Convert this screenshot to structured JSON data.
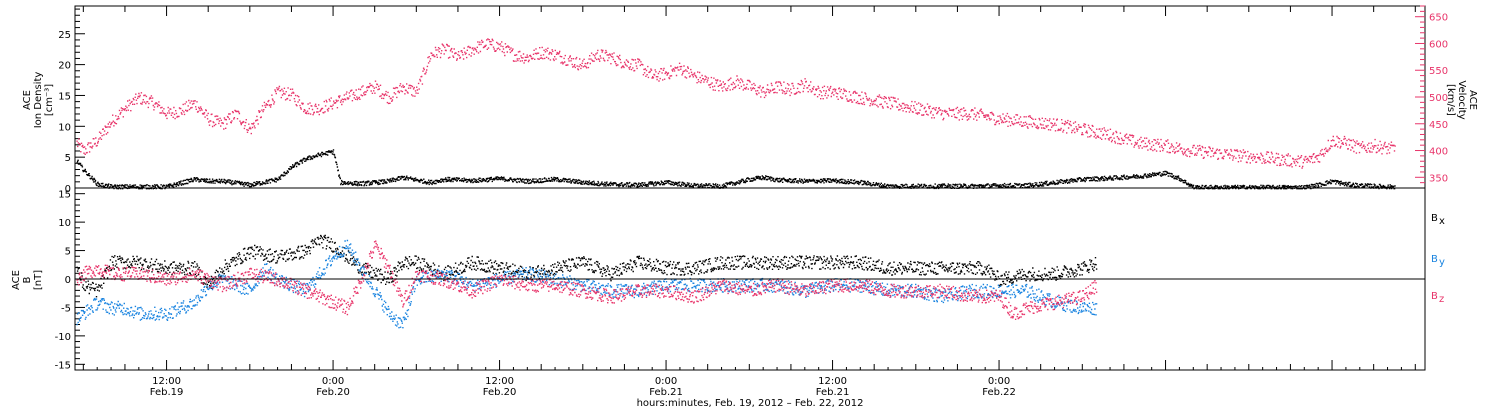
{
  "colors": {
    "axis": "#000000",
    "density": "#000000",
    "velocity": "#e8346a",
    "bx": "#000000",
    "by": "#1a84e0",
    "bz": "#e8346a"
  },
  "chart_data": [
    {
      "panel": "top",
      "type": "scatter",
      "ylabel": [
        "ACE",
        "Ion Density",
        "[cm⁻³]"
      ],
      "ylim": [
        0,
        29.5
      ],
      "yticks": [
        0,
        5,
        10,
        15,
        20,
        25
      ],
      "y2label": [
        "ACE",
        "Velocity",
        "[km/s]"
      ],
      "y2lim": [
        330,
        670
      ],
      "y2ticks": [
        350,
        400,
        450,
        500,
        550,
        600,
        650
      ],
      "x_units": "hours since 2012-02-19 00:00",
      "xlim": [
        5.4,
        102.7
      ],
      "series": [
        {
          "key": "density",
          "axis": "left",
          "x": [
            5.5,
            6,
            7,
            8,
            10,
            12,
            14,
            15,
            16,
            18,
            20,
            21,
            22,
            23,
            24,
            24.5,
            26,
            28,
            29,
            30,
            31,
            32,
            34,
            36,
            38,
            40,
            42,
            44,
            46,
            48,
            50,
            52,
            54,
            55,
            56,
            58,
            60,
            62,
            64,
            66,
            68,
            70,
            72,
            74,
            76,
            78,
            80,
            82,
            84,
            85,
            86,
            88,
            90,
            92,
            94,
            95,
            96,
            97,
            98,
            99,
            100,
            100.5
          ],
          "y": [
            4.5,
            3.0,
            0.7,
            0.3,
            0.3,
            0.3,
            1.5,
            1.2,
            1.2,
            0.6,
            1.5,
            3.5,
            4.8,
            5.5,
            6.0,
            1.0,
            0.8,
            1.2,
            1.8,
            1.4,
            1.0,
            1.5,
            1.3,
            1.6,
            1.2,
            1.5,
            1.0,
            0.7,
            0.6,
            1.0,
            0.5,
            0.4,
            1.5,
            1.8,
            1.4,
            1.2,
            1.3,
            1.0,
            0.4,
            0.4,
            0.4,
            0.4,
            0.5,
            0.5,
            1.0,
            1.5,
            1.7,
            2.0,
            2.5,
            1.6,
            0.2,
            0.2,
            0.2,
            0.2,
            0.2,
            0.6,
            1.2,
            0.7,
            0.5,
            0.4,
            0.3,
            0.3
          ]
        },
        {
          "key": "velocity",
          "axis": "right",
          "x": [
            5.5,
            6,
            7,
            8,
            9,
            10,
            11,
            12,
            13,
            14,
            15,
            16,
            17,
            18,
            19,
            20,
            21,
            22,
            23,
            24,
            25,
            26,
            27,
            28,
            29,
            30,
            31,
            32,
            33,
            34,
            35,
            36,
            37,
            38,
            39,
            40,
            41,
            42,
            43,
            44,
            45,
            46,
            47,
            48,
            49,
            50,
            51,
            52,
            53,
            54,
            55,
            56,
            57,
            58,
            59,
            60,
            62,
            64,
            66,
            68,
            70,
            72,
            74,
            76,
            78,
            80,
            82,
            84,
            86,
            88,
            90,
            92,
            94,
            95,
            96,
            97,
            98,
            99,
            100,
            100.5
          ],
          "y": [
            415,
            400,
            420,
            455,
            480,
            500,
            490,
            470,
            475,
            490,
            460,
            450,
            470,
            440,
            480,
            510,
            505,
            480,
            480,
            490,
            500,
            510,
            520,
            500,
            520,
            510,
            580,
            590,
            575,
            590,
            600,
            595,
            580,
            575,
            585,
            580,
            570,
            560,
            580,
            575,
            565,
            560,
            540,
            545,
            555,
            540,
            530,
            520,
            530,
            520,
            510,
            520,
            515,
            525,
            510,
            510,
            500,
            490,
            480,
            470,
            470,
            460,
            455,
            450,
            440,
            430,
            415,
            410,
            400,
            395,
            390,
            385,
            380,
            390,
            420,
            415,
            405,
            410,
            405,
            405
          ]
        }
      ]
    },
    {
      "panel": "bottom",
      "type": "scatter",
      "ylabel": [
        "ACE",
        "B",
        "[nT]"
      ],
      "ylim": [
        -16,
        16
      ],
      "yticks": [
        -15,
        -10,
        -5,
        0,
        5,
        10,
        15
      ],
      "zero_line": true,
      "x_units": "hours since 2012-02-19 00:00",
      "xlim": [
        5.4,
        102.7
      ],
      "xticks": [
        {
          "x": 12,
          "label": "12:00",
          "day": "Feb.19"
        },
        {
          "x": 24,
          "label": "0:00",
          "day": "Feb.20"
        },
        {
          "x": 36,
          "label": "12:00",
          "day": "Feb.20"
        },
        {
          "x": 48,
          "label": "0:00",
          "day": "Feb.21"
        },
        {
          "x": 60,
          "label": "12:00",
          "day": "Feb.21"
        },
        {
          "x": 72,
          "label": "0:00",
          "day": "Feb.22"
        }
      ],
      "xlabel": "hours:minutes, Feb. 19, 2012 – Feb. 22, 2012",
      "series": [
        {
          "key": "bx",
          "name": "B",
          "subscript": "x",
          "x": [
            5.5,
            6,
            7,
            8,
            10,
            12,
            14,
            15,
            16,
            18,
            20,
            22,
            23,
            24,
            25,
            26,
            28,
            29,
            30,
            32,
            34,
            36,
            38,
            40,
            42,
            44,
            46,
            48,
            50,
            52,
            54,
            56,
            58,
            60,
            62,
            64,
            66,
            68,
            70,
            71,
            72,
            74,
            76,
            78,
            79
          ],
          "y": [
            2,
            -1,
            -2,
            3,
            3,
            2,
            2,
            -1,
            2,
            5,
            4,
            5,
            7,
            6,
            4,
            2,
            0,
            3,
            3,
            1,
            3,
            2,
            1,
            2,
            3,
            1,
            3,
            2,
            2,
            3,
            3,
            3,
            3,
            3,
            3,
            2,
            2,
            2,
            2,
            2,
            0,
            1,
            1,
            2,
            3
          ]
        },
        {
          "key": "by",
          "name": "B",
          "subscript": "y",
          "x": [
            5.5,
            6,
            7,
            8,
            9,
            10,
            12,
            14,
            15,
            16,
            18,
            19,
            20,
            22,
            24,
            25,
            26,
            27,
            28,
            29,
            30,
            32,
            34,
            36,
            38,
            40,
            42,
            44,
            46,
            48,
            50,
            52,
            54,
            56,
            58,
            60,
            62,
            64,
            66,
            68,
            70,
            72,
            74,
            76,
            78,
            79
          ],
          "y": [
            -7,
            -6,
            -4,
            -5,
            -5,
            -6,
            -6,
            -4,
            -1,
            0,
            -2,
            2,
            0,
            -2,
            4,
            6,
            2,
            -2,
            -6,
            -8,
            0,
            1,
            -1,
            0,
            1,
            0,
            -1,
            -2,
            -2,
            -1,
            -1,
            -1,
            -1,
            -1,
            -2,
            -1,
            -1,
            -2,
            -2,
            -3,
            -2,
            -2,
            -2,
            -4,
            -5,
            -5
          ]
        },
        {
          "key": "bz",
          "name": "B",
          "subscript": "z",
          "x": [
            5.5,
            6,
            7,
            8,
            10,
            12,
            14,
            15,
            16,
            18,
            20,
            22,
            24,
            25,
            26,
            27,
            28,
            29,
            30,
            32,
            34,
            36,
            38,
            40,
            42,
            44,
            46,
            48,
            50,
            52,
            54,
            56,
            58,
            60,
            62,
            64,
            66,
            68,
            70,
            72,
            73,
            74,
            76,
            78,
            79
          ],
          "y": [
            0,
            1,
            2,
            1,
            1,
            0,
            1,
            0,
            -1,
            1,
            0,
            -2,
            -4,
            -5,
            0,
            6,
            2,
            -4,
            1,
            0,
            -2,
            0,
            -1,
            -1,
            -2,
            -3,
            -2,
            -2,
            -3,
            -1,
            -2,
            -1,
            -2,
            -1,
            -1,
            -2,
            -2,
            -2,
            -3,
            -3,
            -6,
            -5,
            -4,
            -3,
            -1
          ]
        }
      ]
    }
  ]
}
